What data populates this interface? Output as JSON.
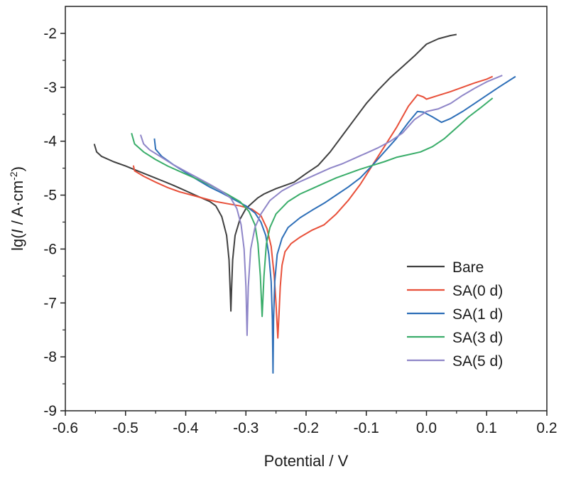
{
  "chart_data": {
    "type": "line",
    "title": "",
    "xlabel": "Potential / V",
    "ylabel_parts": {
      "prefix": "lg(",
      "italic_var": "I",
      "middle": " / A·cm",
      "superscript": "-2",
      "suffix": ")"
    },
    "xlim": [
      -0.6,
      0.2
    ],
    "ylim": [
      -9,
      -1.5
    ],
    "xticks": [
      -0.6,
      -0.5,
      -0.4,
      -0.3,
      -0.2,
      -0.1,
      0.0,
      0.1,
      0.2
    ],
    "xtick_labels": [
      "-0.6",
      "-0.5",
      "-0.4",
      "-0.3",
      "-0.2",
      "-0.1",
      "0.0",
      "0.1",
      "0.2"
    ],
    "yticks": [
      -9,
      -8,
      -7,
      -6,
      -5,
      -4,
      -3,
      -2
    ],
    "ytick_labels": [
      "-9",
      "-8",
      "-7",
      "-6",
      "-5",
      "-4",
      "-3",
      "-2"
    ],
    "grid": false,
    "legend_position": "bottom-right",
    "series": [
      {
        "name": "Bare",
        "color": "#404040",
        "points": [
          [
            -0.552,
            -4.05
          ],
          [
            -0.548,
            -4.2
          ],
          [
            -0.54,
            -4.28
          ],
          [
            -0.52,
            -4.38
          ],
          [
            -0.5,
            -4.46
          ],
          [
            -0.48,
            -4.55
          ],
          [
            -0.46,
            -4.64
          ],
          [
            -0.44,
            -4.73
          ],
          [
            -0.42,
            -4.82
          ],
          [
            -0.4,
            -4.92
          ],
          [
            -0.38,
            -5.02
          ],
          [
            -0.36,
            -5.12
          ],
          [
            -0.35,
            -5.2
          ],
          [
            -0.34,
            -5.4
          ],
          [
            -0.332,
            -5.75
          ],
          [
            -0.328,
            -6.2
          ],
          [
            -0.326,
            -6.8
          ],
          [
            -0.325,
            -7.15
          ],
          [
            -0.324,
            -6.8
          ],
          [
            -0.322,
            -6.2
          ],
          [
            -0.318,
            -5.75
          ],
          [
            -0.31,
            -5.45
          ],
          [
            -0.3,
            -5.25
          ],
          [
            -0.29,
            -5.15
          ],
          [
            -0.28,
            -5.05
          ],
          [
            -0.27,
            -4.98
          ],
          [
            -0.26,
            -4.93
          ],
          [
            -0.25,
            -4.88
          ],
          [
            -0.24,
            -4.84
          ],
          [
            -0.22,
            -4.76
          ],
          [
            -0.21,
            -4.68
          ],
          [
            -0.2,
            -4.6
          ],
          [
            -0.18,
            -4.45
          ],
          [
            -0.16,
            -4.2
          ],
          [
            -0.14,
            -3.9
          ],
          [
            -0.12,
            -3.6
          ],
          [
            -0.1,
            -3.3
          ],
          [
            -0.08,
            -3.05
          ],
          [
            -0.06,
            -2.82
          ],
          [
            -0.04,
            -2.62
          ],
          [
            -0.02,
            -2.42
          ],
          [
            0.0,
            -2.2
          ],
          [
            0.02,
            -2.1
          ],
          [
            0.04,
            -2.04
          ],
          [
            0.05,
            -2.02
          ]
        ]
      },
      {
        "name": "SA(0 d)",
        "color": "#e8503a",
        "points": [
          [
            -0.487,
            -4.45
          ],
          [
            -0.485,
            -4.55
          ],
          [
            -0.47,
            -4.65
          ],
          [
            -0.45,
            -4.76
          ],
          [
            -0.43,
            -4.86
          ],
          [
            -0.41,
            -4.94
          ],
          [
            -0.39,
            -5.0
          ],
          [
            -0.37,
            -5.06
          ],
          [
            -0.35,
            -5.12
          ],
          [
            -0.33,
            -5.16
          ],
          [
            -0.31,
            -5.2
          ],
          [
            -0.29,
            -5.26
          ],
          [
            -0.275,
            -5.38
          ],
          [
            -0.265,
            -5.62
          ],
          [
            -0.258,
            -5.95
          ],
          [
            -0.253,
            -6.5
          ],
          [
            -0.25,
            -7.0
          ],
          [
            -0.247,
            -7.65
          ],
          [
            -0.245,
            -7.2
          ],
          [
            -0.243,
            -6.7
          ],
          [
            -0.24,
            -6.3
          ],
          [
            -0.235,
            -6.05
          ],
          [
            -0.225,
            -5.9
          ],
          [
            -0.21,
            -5.78
          ],
          [
            -0.19,
            -5.65
          ],
          [
            -0.17,
            -5.55
          ],
          [
            -0.15,
            -5.35
          ],
          [
            -0.13,
            -5.1
          ],
          [
            -0.11,
            -4.8
          ],
          [
            -0.09,
            -4.45
          ],
          [
            -0.07,
            -4.1
          ],
          [
            -0.05,
            -3.75
          ],
          [
            -0.03,
            -3.35
          ],
          [
            -0.015,
            -3.14
          ],
          [
            -0.005,
            -3.18
          ],
          [
            0.0,
            -3.22
          ],
          [
            0.02,
            -3.15
          ],
          [
            0.04,
            -3.08
          ],
          [
            0.06,
            -3.0
          ],
          [
            0.08,
            -2.92
          ],
          [
            0.1,
            -2.85
          ],
          [
            0.11,
            -2.8
          ]
        ]
      },
      {
        "name": "SA(1 d)",
        "color": "#2e6fb8",
        "points": [
          [
            -0.452,
            -3.95
          ],
          [
            -0.45,
            -4.15
          ],
          [
            -0.44,
            -4.28
          ],
          [
            -0.42,
            -4.44
          ],
          [
            -0.4,
            -4.58
          ],
          [
            -0.38,
            -4.72
          ],
          [
            -0.36,
            -4.85
          ],
          [
            -0.34,
            -4.96
          ],
          [
            -0.32,
            -5.08
          ],
          [
            -0.3,
            -5.2
          ],
          [
            -0.285,
            -5.33
          ],
          [
            -0.275,
            -5.5
          ],
          [
            -0.267,
            -5.75
          ],
          [
            -0.262,
            -6.1
          ],
          [
            -0.258,
            -6.6
          ],
          [
            -0.256,
            -7.3
          ],
          [
            -0.255,
            -8.3
          ],
          [
            -0.254,
            -7.3
          ],
          [
            -0.252,
            -6.6
          ],
          [
            -0.248,
            -6.1
          ],
          [
            -0.24,
            -5.8
          ],
          [
            -0.23,
            -5.6
          ],
          [
            -0.21,
            -5.42
          ],
          [
            -0.19,
            -5.28
          ],
          [
            -0.17,
            -5.15
          ],
          [
            -0.15,
            -5.0
          ],
          [
            -0.13,
            -4.85
          ],
          [
            -0.11,
            -4.68
          ],
          [
            -0.09,
            -4.45
          ],
          [
            -0.07,
            -4.2
          ],
          [
            -0.05,
            -3.95
          ],
          [
            -0.03,
            -3.65
          ],
          [
            -0.015,
            -3.45
          ],
          [
            -0.005,
            -3.46
          ],
          [
            0.01,
            -3.55
          ],
          [
            0.025,
            -3.65
          ],
          [
            0.04,
            -3.58
          ],
          [
            0.06,
            -3.45
          ],
          [
            0.08,
            -3.3
          ],
          [
            0.1,
            -3.15
          ],
          [
            0.12,
            -3.0
          ],
          [
            0.148,
            -2.8
          ]
        ]
      },
      {
        "name": "SA(3 d)",
        "color": "#3aad6a",
        "points": [
          [
            -0.49,
            -3.85
          ],
          [
            -0.485,
            -4.05
          ],
          [
            -0.47,
            -4.2
          ],
          [
            -0.45,
            -4.34
          ],
          [
            -0.43,
            -4.46
          ],
          [
            -0.41,
            -4.56
          ],
          [
            -0.39,
            -4.66
          ],
          [
            -0.37,
            -4.76
          ],
          [
            -0.35,
            -4.87
          ],
          [
            -0.33,
            -4.99
          ],
          [
            -0.31,
            -5.12
          ],
          [
            -0.295,
            -5.3
          ],
          [
            -0.285,
            -5.55
          ],
          [
            -0.28,
            -5.9
          ],
          [
            -0.276,
            -6.5
          ],
          [
            -0.273,
            -7.25
          ],
          [
            -0.27,
            -6.5
          ],
          [
            -0.266,
            -5.9
          ],
          [
            -0.26,
            -5.6
          ],
          [
            -0.25,
            -5.35
          ],
          [
            -0.23,
            -5.12
          ],
          [
            -0.21,
            -4.98
          ],
          [
            -0.19,
            -4.88
          ],
          [
            -0.17,
            -4.78
          ],
          [
            -0.15,
            -4.68
          ],
          [
            -0.13,
            -4.6
          ],
          [
            -0.11,
            -4.52
          ],
          [
            -0.09,
            -4.45
          ],
          [
            -0.07,
            -4.38
          ],
          [
            -0.05,
            -4.3
          ],
          [
            -0.03,
            -4.25
          ],
          [
            -0.01,
            -4.2
          ],
          [
            0.01,
            -4.1
          ],
          [
            0.03,
            -3.95
          ],
          [
            0.05,
            -3.75
          ],
          [
            0.07,
            -3.55
          ],
          [
            0.09,
            -3.38
          ],
          [
            0.11,
            -3.2
          ]
        ]
      },
      {
        "name": "SA(5 d)",
        "color": "#8f86c8",
        "points": [
          [
            -0.475,
            -3.88
          ],
          [
            -0.47,
            -4.05
          ],
          [
            -0.46,
            -4.16
          ],
          [
            -0.44,
            -4.3
          ],
          [
            -0.42,
            -4.44
          ],
          [
            -0.4,
            -4.56
          ],
          [
            -0.38,
            -4.68
          ],
          [
            -0.36,
            -4.8
          ],
          [
            -0.34,
            -4.93
          ],
          [
            -0.325,
            -5.06
          ],
          [
            -0.315,
            -5.25
          ],
          [
            -0.308,
            -5.55
          ],
          [
            -0.303,
            -6.0
          ],
          [
            -0.3,
            -6.7
          ],
          [
            -0.298,
            -7.6
          ],
          [
            -0.296,
            -6.7
          ],
          [
            -0.292,
            -6.0
          ],
          [
            -0.285,
            -5.6
          ],
          [
            -0.275,
            -5.35
          ],
          [
            -0.26,
            -5.1
          ],
          [
            -0.24,
            -4.92
          ],
          [
            -0.22,
            -4.8
          ],
          [
            -0.2,
            -4.7
          ],
          [
            -0.18,
            -4.6
          ],
          [
            -0.16,
            -4.5
          ],
          [
            -0.14,
            -4.42
          ],
          [
            -0.12,
            -4.32
          ],
          [
            -0.1,
            -4.22
          ],
          [
            -0.08,
            -4.12
          ],
          [
            -0.06,
            -4.0
          ],
          [
            -0.04,
            -3.85
          ],
          [
            -0.02,
            -3.6
          ],
          [
            0.0,
            -3.45
          ],
          [
            0.02,
            -3.4
          ],
          [
            0.04,
            -3.3
          ],
          [
            0.06,
            -3.15
          ],
          [
            0.08,
            -3.02
          ],
          [
            0.1,
            -2.9
          ],
          [
            0.126,
            -2.78
          ]
        ]
      }
    ]
  }
}
